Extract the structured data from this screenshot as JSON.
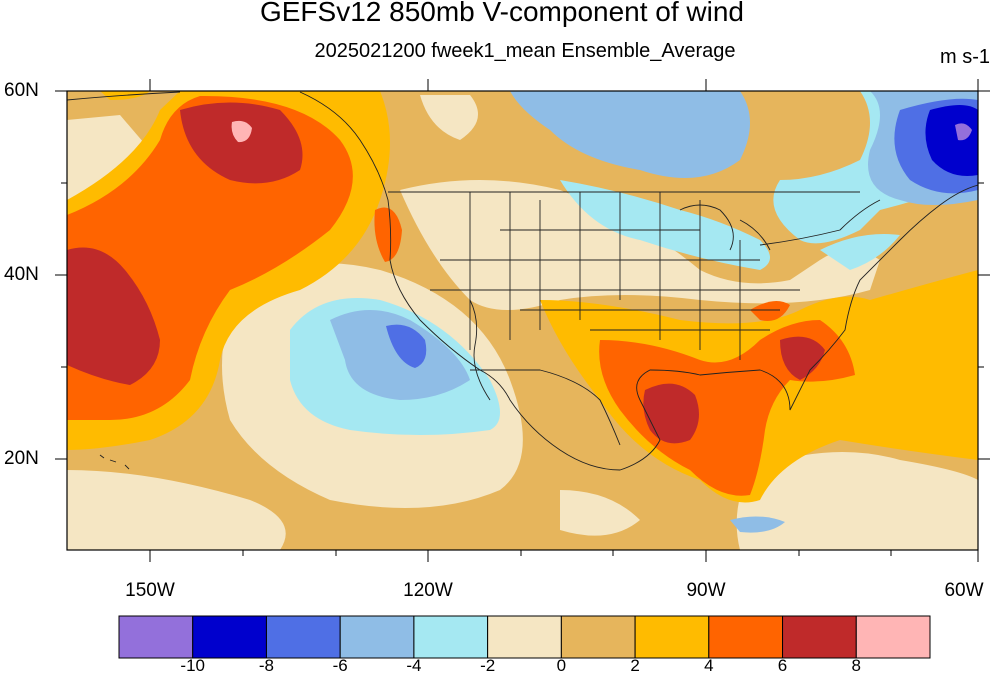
{
  "title": "GEFSv12 850mb V-component of wind",
  "subtitle": "2025021200 fweek1_mean Ensemble_Average",
  "units": "m s-1",
  "lat_labels": [
    "60N",
    "40N",
    "20N"
  ],
  "lon_labels": [
    "150W",
    "120W",
    "90W",
    "60W"
  ],
  "colorbar": {
    "colors": [
      "#9370db",
      "#0000cd",
      "#4f6fe5",
      "#8fbde6",
      "#a5e8f2",
      "#f5e6c3",
      "#e6b55c",
      "#ffbb00",
      "#ff6400",
      "#bf2a2a",
      "#ffb5b5"
    ],
    "labels": [
      "-10",
      "-8",
      "-6",
      "-4",
      "-2",
      "0",
      "2",
      "4",
      "6",
      "8"
    ]
  }
}
